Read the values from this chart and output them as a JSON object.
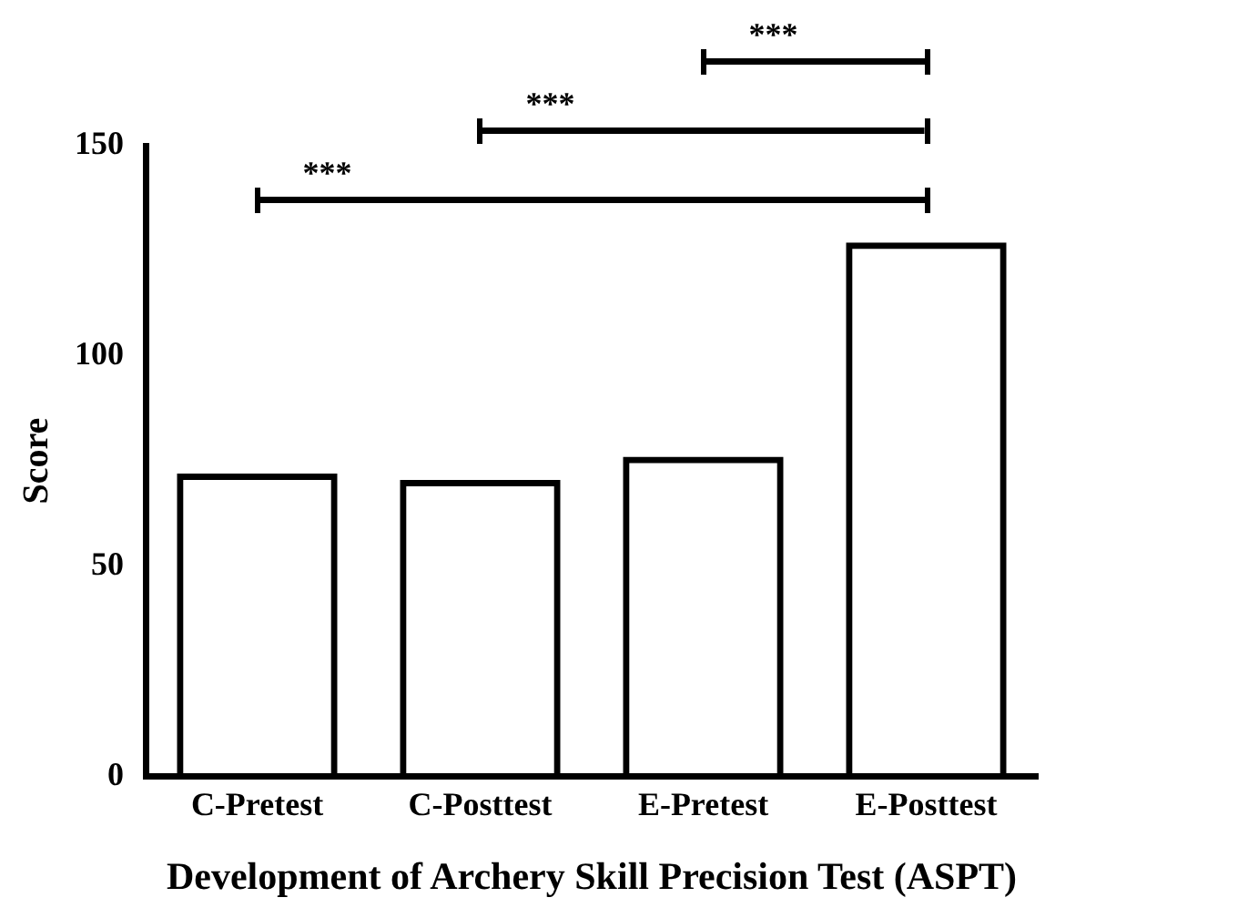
{
  "chart_data": {
    "type": "bar",
    "xlabel": "Development of Archery Skill Precision Test (ASPT)",
    "ylabel": "Score",
    "categories": [
      "C-Pretest",
      "C-Posttest",
      "E-Pretest",
      "E-Posttest"
    ],
    "values": [
      72,
      70.5,
      76,
      127
    ],
    "color": "#000000",
    "ylim": [
      0,
      150
    ],
    "yticks": [
      0,
      50,
      100,
      150
    ],
    "grid": false,
    "annotations": [
      "***",
      "***",
      "***"
    ]
  }
}
